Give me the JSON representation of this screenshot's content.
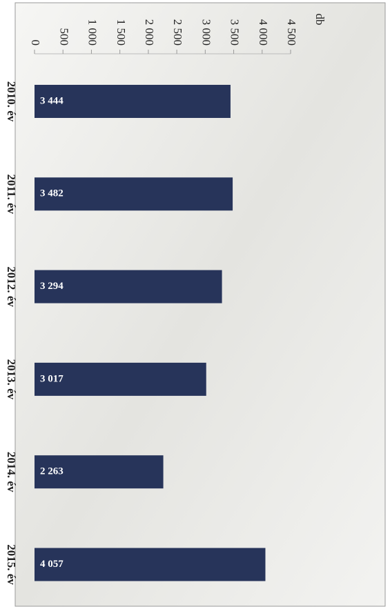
{
  "chart_data": {
    "type": "bar",
    "orientation": "horizontal",
    "unit_label": "db",
    "categories": [
      "2010. év",
      "2011. év",
      "2012. év",
      "2013. év",
      "2014. év",
      "2015. év"
    ],
    "values": [
      3444,
      3482,
      3294,
      3017,
      2263,
      4057
    ],
    "value_labels": [
      "3 444",
      "3 482",
      "3 294",
      "3 017",
      "2 263",
      "4 057"
    ],
    "color": "#27345a",
    "xlim": [
      0,
      4500
    ],
    "xticks": [
      0,
      500,
      {
        "value": 1000,
        "label": "1 000"
      },
      {
        "value": 1500,
        "label": "1 500"
      },
      {
        "value": 2000,
        "label": "2 000"
      },
      {
        "value": 2500,
        "label": "2 500"
      },
      {
        "value": 3000,
        "label": "3 000"
      },
      {
        "value": 3500,
        "label": "3 500"
      },
      {
        "value": 4000,
        "label": "4 000"
      },
      {
        "value": 4500,
        "label": "4 500"
      }
    ]
  }
}
